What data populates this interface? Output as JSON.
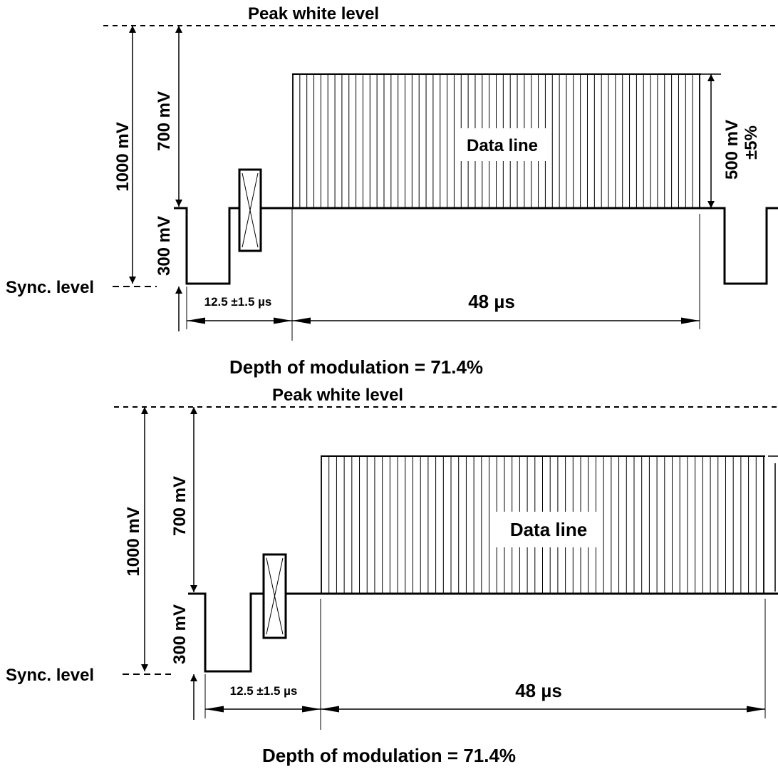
{
  "diagram_top": {
    "peak_white_label": "Peak white level",
    "sync_level_label": "Sync. level",
    "v1000_label": "1000 mV",
    "v700_label": "700 mV",
    "v300_label": "300 mV",
    "v500_label": "500 mV",
    "v500_tol_label": "±5%",
    "data_line_label": "Data line",
    "t_gap_label": "12.5 ±1.5 µs",
    "t_data_label": "48 µs",
    "depth_label": "Depth of modulation = 71.4%"
  },
  "diagram_bottom": {
    "peak_white_label": "Peak white level",
    "sync_level_label": "Sync. level",
    "v1000_label": "1000 mV",
    "v700_label": "700 mV",
    "v300_label": "300 mV",
    "data_line_label": "Data line",
    "t_gap_label": "12.5 ±1.5 µs",
    "t_data_label": "48 µs",
    "depth_label": "Depth of modulation = 71.4%"
  }
}
